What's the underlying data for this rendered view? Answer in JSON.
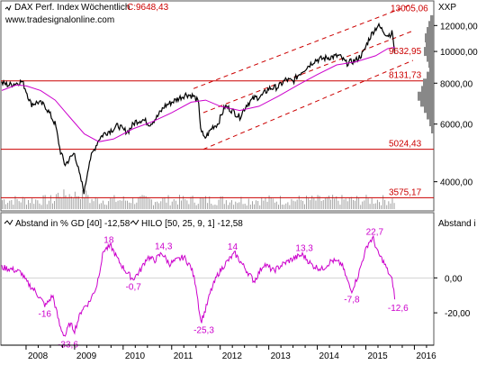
{
  "chart_data": [
    {
      "type": "line",
      "title": "DAX Perf. Index",
      "interval": "Wöchentlich",
      "last_close_label": "C:9648,43",
      "watermark": "www.tradesignalonline.com",
      "axis_title": "XXP",
      "y_scale": "log",
      "ylim": [
        3300,
        14000
      ],
      "y_ticks": [
        {
          "value": 12000,
          "label": "12000,00"
        },
        {
          "value": 10000,
          "label": "10000,00"
        },
        {
          "value": 8000,
          "label": "8000,00"
        },
        {
          "value": 6000,
          "label": "6000,00"
        },
        {
          "value": 4000,
          "label": "4000,00"
        }
      ],
      "x_ticks": [
        "2008",
        "2009",
        "2010",
        "2011",
        "2012",
        "2013",
        "2014",
        "2015",
        "2016"
      ],
      "series": [
        {
          "name": "DAX Perf. Index",
          "color": "#000000",
          "x": [
            2007.5,
            2007.65,
            2007.8,
            2007.92,
            2008.0,
            2008.1,
            2008.25,
            2008.4,
            2008.5,
            2008.6,
            2008.7,
            2008.8,
            2008.9,
            2009.0,
            2009.1,
            2009.2,
            2009.3,
            2009.4,
            2009.5,
            2009.6,
            2009.7,
            2009.8,
            2009.9,
            2010.0,
            2010.1,
            2010.25,
            2010.4,
            2010.55,
            2010.7,
            2010.85,
            2011.0,
            2011.15,
            2011.3,
            2011.45,
            2011.55,
            2011.6,
            2011.67,
            2011.75,
            2011.85,
            2011.95,
            2012.1,
            2012.25,
            2012.4,
            2012.55,
            2012.7,
            2012.85,
            2013.0,
            2013.2,
            2013.35,
            2013.5,
            2013.65,
            2013.8,
            2013.95,
            2014.1,
            2014.25,
            2014.45,
            2014.6,
            2014.8,
            2014.95,
            2015.05,
            2015.15,
            2015.25,
            2015.35,
            2015.45,
            2015.55,
            2015.6
          ],
          "y": [
            8000,
            7900,
            8000,
            8100,
            7600,
            6900,
            7000,
            6800,
            6400,
            6000,
            5000,
            4500,
            4700,
            4900,
            4200,
            3700,
            4600,
            5000,
            5400,
            5600,
            5700,
            5800,
            5950,
            5750,
            5700,
            6100,
            6200,
            6000,
            6300,
            6800,
            7000,
            7200,
            7400,
            7300,
            7000,
            5800,
            5400,
            5600,
            5900,
            6000,
            6800,
            6600,
            6300,
            6900,
            7200,
            7300,
            7700,
            7800,
            8200,
            8100,
            8600,
            9000,
            9400,
            9500,
            9600,
            9700,
            9200,
            9400,
            9900,
            10800,
            11500,
            12000,
            11600,
            11200,
            11400,
            9650
          ]
        },
        {
          "name": "GD 40",
          "color": "#cc00cc",
          "x": [
            2007.5,
            2007.8,
            2008.0,
            2008.3,
            2008.6,
            2008.9,
            2009.2,
            2009.5,
            2009.8,
            2010.2,
            2010.6,
            2011.0,
            2011.4,
            2011.7,
            2012.0,
            2012.4,
            2012.8,
            2013.2,
            2013.6,
            2014.0,
            2014.4,
            2014.8,
            2015.2,
            2015.45,
            2015.6
          ],
          "y": [
            7600,
            7900,
            7850,
            7600,
            7100,
            6300,
            5600,
            5300,
            5400,
            5800,
            6100,
            6500,
            7000,
            7100,
            6800,
            6600,
            6800,
            7300,
            7900,
            8500,
            9100,
            9300,
            9700,
            10200,
            10300
          ]
        }
      ],
      "horizontal_levels": [
        {
          "value": 13005.06,
          "label": "13005,06"
        },
        {
          "value": 9632.95,
          "label": "9632,95"
        },
        {
          "value": 8131.73,
          "label": "8131,73"
        },
        {
          "value": 5024.43,
          "label": "5024,43"
        },
        {
          "value": 3575.17,
          "label": "3575,17"
        }
      ],
      "trend_channel": {
        "upper": [
          [
            2011.45,
            7700
          ],
          [
            2015.6,
            13300
          ]
        ],
        "middle": [
          [
            2011.65,
            6500
          ],
          [
            2015.6,
            11000
          ]
        ],
        "lower": [
          [
            2011.65,
            5024
          ],
          [
            2015.6,
            8900
          ]
        ]
      },
      "volume_shown": true,
      "grid": false
    },
    {
      "type": "line",
      "legend": [
        {
          "label": "Abstand in % GD [40] -12,58"
        },
        {
          "label": "HILO [50, 25, 9, 1] -12,58"
        }
      ],
      "axis_title": "Abstand i",
      "ylim": [
        -38,
        27
      ],
      "y_ticks": [
        {
          "value": 0,
          "label": "0,00"
        },
        {
          "value": -20,
          "label": "-20,00"
        }
      ],
      "x_ticks": [
        "2008",
        "2009",
        "2010",
        "2011",
        "2012",
        "2013",
        "2014",
        "2015",
        "2016"
      ],
      "series": [
        {
          "name": "Abstand in % GD [40]",
          "color": "#cc00cc",
          "x": [
            2007.5,
            2007.7,
            2007.9,
            2008.0,
            2008.2,
            2008.4,
            2008.55,
            2008.7,
            2008.8,
            2008.9,
            2009.0,
            2009.15,
            2009.3,
            2009.45,
            2009.6,
            2009.75,
            2009.9,
            2010.05,
            2010.2,
            2010.35,
            2010.5,
            2010.65,
            2010.8,
            2010.95,
            2011.1,
            2011.25,
            2011.4,
            2011.5,
            2011.6,
            2011.7,
            2011.8,
            2011.95,
            2012.1,
            2012.3,
            2012.5,
            2012.7,
            2012.9,
            2013.1,
            2013.3,
            2013.5,
            2013.7,
            2013.9,
            2014.1,
            2014.3,
            2014.5,
            2014.7,
            2014.85,
            2014.95,
            2015.05,
            2015.15,
            2015.25,
            2015.35,
            2015.45,
            2015.55,
            2015.6
          ],
          "y": [
            6,
            5,
            3,
            -2,
            -8,
            -16,
            -10,
            -28,
            -33.6,
            -26,
            -30,
            -18,
            -14,
            -5,
            16,
            18,
            10,
            4,
            -0.7,
            4,
            12,
            10,
            14.3,
            8,
            10,
            12,
            6,
            -4,
            -25.3,
            -18,
            -8,
            2,
            8,
            14,
            6,
            -2,
            8,
            4,
            8,
            11,
            13.3,
            7,
            5,
            10,
            8,
            -7.8,
            2,
            12,
            20,
            22.7,
            14,
            10,
            4,
            -2,
            -12.6
          ]
        }
      ],
      "annotations": [
        {
          "x": 2008.4,
          "y": -16,
          "label": "-16"
        },
        {
          "x": 2008.8,
          "y": -33.6,
          "label": "-33,6"
        },
        {
          "x": 2009.75,
          "y": 18,
          "label": "18"
        },
        {
          "x": 2010.2,
          "y": -0.7,
          "label": "-0,7"
        },
        {
          "x": 2010.8,
          "y": 14.3,
          "label": "14,3"
        },
        {
          "x": 2011.6,
          "y": -25.3,
          "label": "-25,3"
        },
        {
          "x": 2012.3,
          "y": 14,
          "label": "14"
        },
        {
          "x": 2013.7,
          "y": 13.3,
          "label": "13,3"
        },
        {
          "x": 2014.7,
          "y": -7.8,
          "label": "-7,8"
        },
        {
          "x": 2015.15,
          "y": 22.7,
          "label": "22,7"
        },
        {
          "x": 2015.6,
          "y": -12.6,
          "label": "-12,6"
        }
      ],
      "grid": false
    }
  ],
  "colors": {
    "price": "#000000",
    "average": "#cc00cc",
    "levels": "#cc0000",
    "volume": "#999999"
  }
}
